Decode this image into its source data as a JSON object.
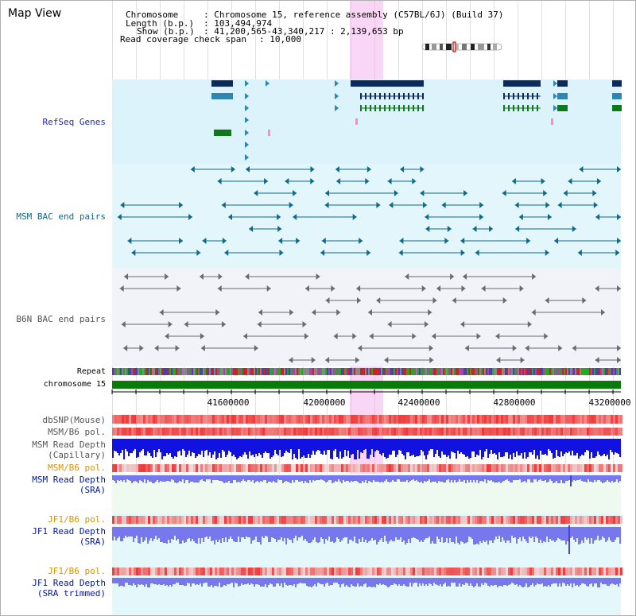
{
  "title": "Map View",
  "header": {
    "chromosome_key": "Chromosome",
    "chromosome_val": ": Chromosome 15, reference assembly (C57BL/6J) (Build 37)",
    "length_key": "Length (b.p.)",
    "length_val": ": 103,494,974",
    "show_key": "Show (b.p.)",
    "show_val": ": 41,200,565-43,340,217 : 2,139,653 bp",
    "coverage_key": "Read coverage check span",
    "coverage_val": ": 10,000"
  },
  "tracks": {
    "refseq": "RefSeq Genes",
    "msm_bac": "MSM BAC end pairs",
    "b6n_bac": "B6N BAC end pairs",
    "repeat": "Repeat",
    "chromosome": "chromosome 15",
    "dbsnp": "dbSNP(Mouse)",
    "msm_b6_pol_1": "MSM/B6 pol.",
    "msm_read_depth_cap_1": "MSM Read Depth",
    "msm_read_depth_cap_2": "(Capillary)",
    "msm_b6_pol_2": "MSM/B6 pol.",
    "msm_read_depth_sra_1": "MSM Read Depth",
    "msm_read_depth_sra_2": "(SRA)",
    "jf1_b6_pol_1": "JF1/B6 pol.",
    "jf1_read_depth_sra_1": "JF1 Read Depth",
    "jf1_read_depth_sra_2": "(SRA)",
    "jf1_b6_pol_2": "JF1/B6 pol.",
    "jf1_read_depth_trim_1": "JF1 Read Depth",
    "jf1_read_depth_trim_2": "(SRA trimmed)"
  },
  "axis": {
    "ticks": [
      "41600000",
      "42000000",
      "42400000",
      "42800000",
      "43200000"
    ]
  },
  "colors": {
    "refseq_bg": "#dcf3fb",
    "msm_bg": "#e2f6fb",
    "b6n_bg": "#f1f3f8",
    "highlight": "#f4aaec",
    "gene_dark": "#0b2a5e",
    "gene_mid": "#2f86b0",
    "gene_green": "#0d7a1a",
    "msm_pair": "#0f6a8a",
    "b6n_pair": "#6a6a6a",
    "chromosome_bar": "#0a7a0a",
    "snp_red": "#ee3b3b",
    "depth_blue": "#1212e0",
    "depth_lavender": "#7878ee",
    "sra_bg": "#eefaf0"
  }
}
